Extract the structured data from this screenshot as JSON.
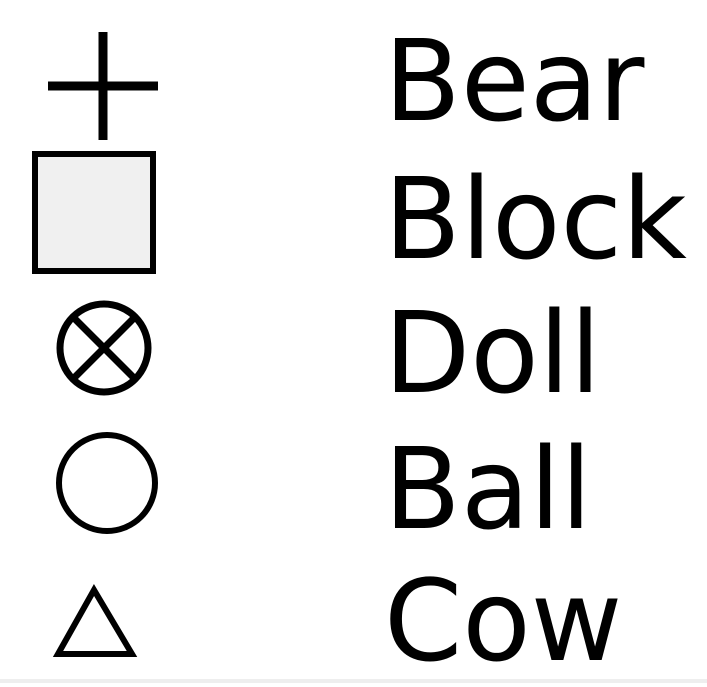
{
  "legend": {
    "items": [
      {
        "label": "Bear",
        "symbol": "plus-icon"
      },
      {
        "label": "Block",
        "symbol": "square-icon"
      },
      {
        "label": "Doll",
        "symbol": "circle-x-icon"
      },
      {
        "label": "Ball",
        "symbol": "circle-icon"
      },
      {
        "label": "Cow",
        "symbol": "triangle-icon"
      }
    ],
    "colors": {
      "stroke": "#000000",
      "square_fill": "#f0f0f0"
    }
  }
}
